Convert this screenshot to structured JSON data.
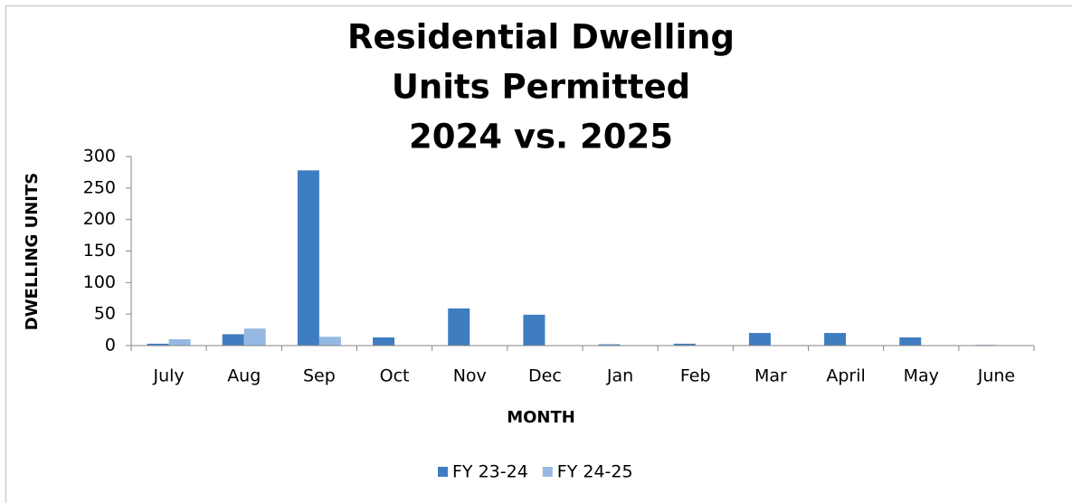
{
  "chart_data": {
    "type": "bar",
    "title": [
      "Residential Dwelling",
      "Units Permitted",
      "2024 vs. 2025"
    ],
    "xlabel": "MONTH",
    "ylabel": "DWELLING UNITS",
    "categories": [
      "July",
      "Aug",
      "Sep",
      "Oct",
      "Nov",
      "Dec",
      "Jan",
      "Feb",
      "Mar",
      "April",
      "May",
      "June"
    ],
    "series": [
      {
        "name": "FY 23-24",
        "color": "#3f7dc1",
        "values": [
          3,
          18,
          278,
          13,
          59,
          49,
          2,
          3,
          20,
          20,
          13,
          1
        ]
      },
      {
        "name": "FY 24-25",
        "color": "#95b9e2",
        "values": [
          10,
          27,
          14,
          0,
          0,
          0,
          0,
          0,
          0,
          0,
          0,
          0
        ]
      }
    ],
    "ylim": [
      0,
      300
    ],
    "yticks": [
      0,
      50,
      100,
      150,
      200,
      250,
      300
    ],
    "grid": false,
    "legend": "bottom"
  }
}
